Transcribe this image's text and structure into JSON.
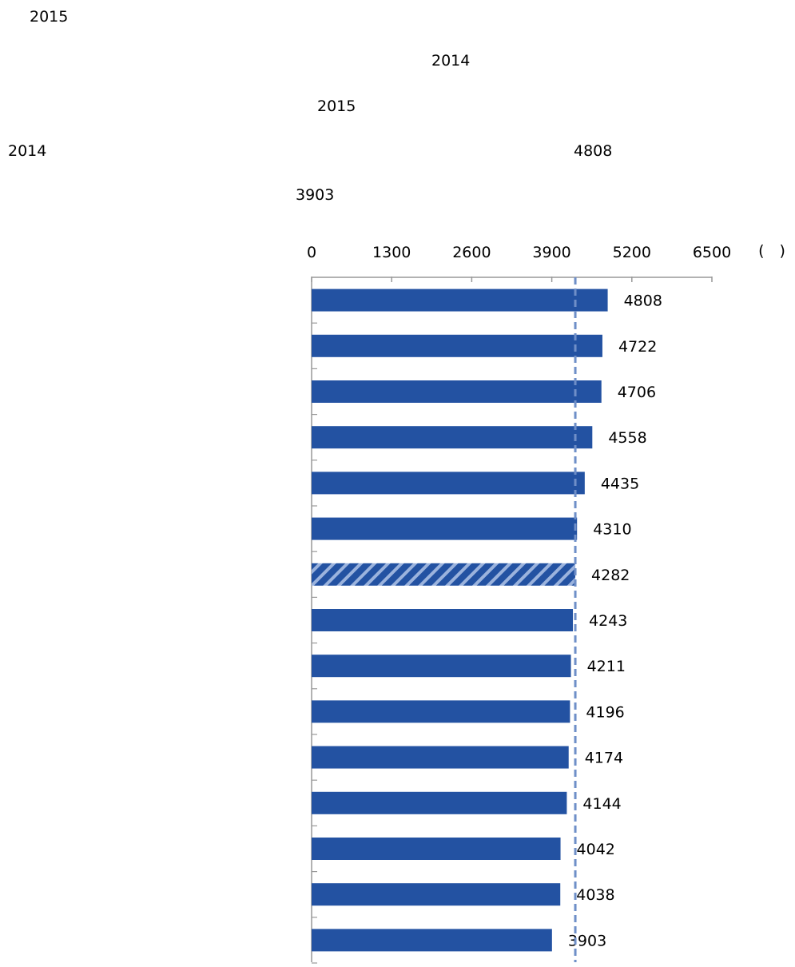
{
  "texts": {
    "line1": "2015",
    "line2": "2014",
    "line3": "2015",
    "line4_left": "2014",
    "line4_right": "4808",
    "line5": "3903"
  },
  "chart_data": {
    "type": "bar",
    "orientation": "horizontal",
    "x_ticks": [
      "0",
      "1300",
      "2600",
      "3900",
      "5200",
      "6500"
    ],
    "unit_label": "(　)",
    "xlim": [
      0,
      6500
    ],
    "reference_line": 4282,
    "highlighted_index": 6,
    "values": [
      4808,
      4722,
      4706,
      4558,
      4435,
      4310,
      4282,
      4243,
      4211,
      4196,
      4174,
      4144,
      4042,
      4038,
      3903
    ],
    "colors": {
      "bar": "#2352a2",
      "highlight_stripe": "#9bb3dd",
      "reference": "#6f8fc8",
      "axis": "#999999"
    }
  }
}
